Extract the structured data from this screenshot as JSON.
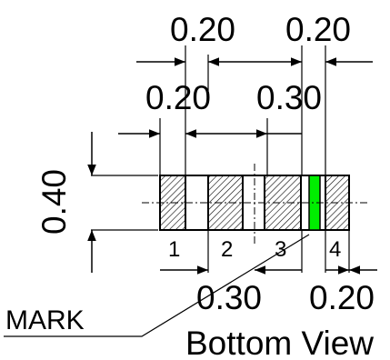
{
  "view_title": "Bottom View",
  "mark_label": "MARK",
  "dimensions": {
    "top_right_width": "0.20",
    "top_left_gap": "0.20",
    "pad_width": "0.20",
    "pitch": "0.30",
    "height": "0.40",
    "bottom_pitch": "0.30",
    "bottom_right_width": "0.20"
  },
  "pins": [
    "1",
    "2",
    "3",
    "4"
  ],
  "colors": {
    "mark": "#00ee00",
    "line": "#000000",
    "background": "#ffffff"
  }
}
